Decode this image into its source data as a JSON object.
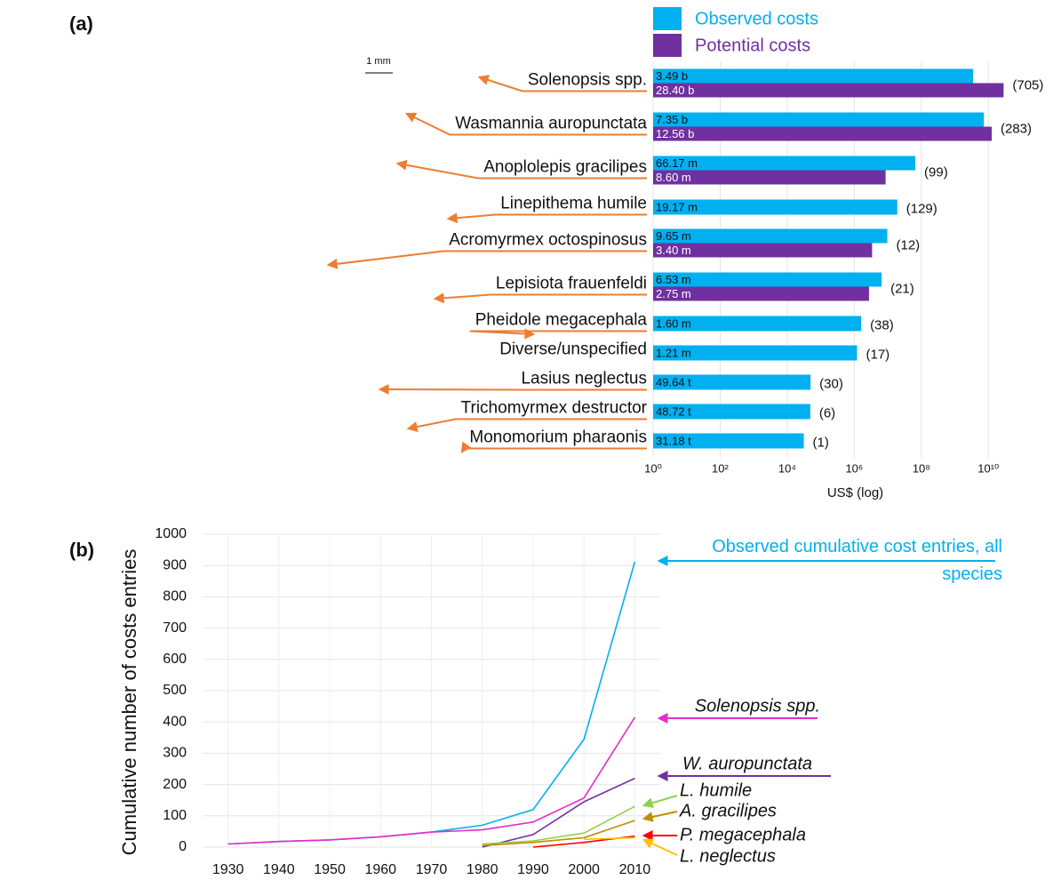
{
  "chart_data": [
    {
      "type": "bar",
      "orientation": "horizontal",
      "panel_label": "(a)",
      "xscale": "log",
      "grid": true,
      "categories": [
        "Solenopsis spp.",
        "Wasmannia auropunctata",
        "Anoplolepis gracilipes",
        "Linepithema humile",
        "Acromyrmex octospinosus",
        "Lepisiota frauenfeldi",
        "Pheidole megacephala",
        "Diverse/unspecified",
        "Lasius neglectus",
        "Trichomyrmex destructor",
        "Monomorium pharaonis"
      ],
      "series": [
        {
          "name": "Observed costs",
          "color": "#00b0f0",
          "values": [
            3490000000,
            7350000000,
            66170000,
            19170000,
            9650000,
            6530000,
            1600000,
            1210000,
            49640,
            48720,
            31180
          ],
          "value_labels": [
            "3.49 b",
            "7.35 b",
            "66.17 m",
            "19.17 m",
            "9.65 m",
            "6.53 m",
            "1.60 m",
            "1.21 m",
            "49.64 t",
            "48.72 t",
            "31.18 t"
          ]
        },
        {
          "name": "Potential costs",
          "color": "#7030a0",
          "values": [
            28400000000,
            12560000000,
            8600000,
            null,
            3400000,
            2750000,
            null,
            null,
            null,
            null,
            null
          ],
          "value_labels": [
            "28.40 b",
            "12.56 b",
            "8.60 m",
            null,
            "3.40 m",
            "2.75 m",
            null,
            null,
            null,
            null,
            null
          ]
        }
      ],
      "entry_labels": [
        "(705)",
        "(283)",
        "(99)",
        "(129)",
        "(12)",
        "(21)",
        "(38)",
        "(17)",
        "(30)",
        "(6)",
        "(1)"
      ],
      "xlim": [
        1,
        100000000000
      ],
      "xticks": [
        {
          "value": 1,
          "label": "10⁰"
        },
        {
          "value": 100,
          "label": "10²"
        },
        {
          "value": 10000,
          "label": "10⁴"
        },
        {
          "value": 1000000,
          "label": "10⁶"
        },
        {
          "value": 100000000,
          "label": "10⁸"
        },
        {
          "value": 10000000000,
          "label": "10¹⁰"
        }
      ],
      "xlabel": "US$ (log)",
      "scale_bar_label": "1 mm",
      "legend": "top"
    },
    {
      "type": "line",
      "panel_label": "(b)",
      "grid": true,
      "x": [
        1930,
        1940,
        1950,
        1960,
        1970,
        1980,
        1990,
        2000,
        2010
      ],
      "series": [
        {
          "name": "Observed cumulative cost entries, all species",
          "color": "#00b0f0",
          "values": [
            10,
            18,
            23,
            33,
            48,
            70,
            120,
            345,
            912
          ]
        },
        {
          "name": "Solenopsis spp.",
          "color": "#e62cc8",
          "values": [
            10,
            18,
            23,
            33,
            48,
            55,
            80,
            157,
            415
          ]
        },
        {
          "name": "W. auropunctata",
          "color": "#7030a0",
          "values": [
            null,
            null,
            null,
            null,
            null,
            0,
            40,
            145,
            220
          ]
        },
        {
          "name": "L. humile",
          "color": "#8fd14f",
          "values": [
            null,
            null,
            null,
            null,
            null,
            10,
            20,
            45,
            130
          ]
        },
        {
          "name": "A. gracilipes",
          "color": "#bf8f00",
          "values": [
            null,
            null,
            null,
            null,
            null,
            5,
            15,
            30,
            85
          ]
        },
        {
          "name": "P. megacephala",
          "color": "#ff0000",
          "values": [
            null,
            null,
            null,
            null,
            null,
            null,
            0,
            15,
            35
          ]
        },
        {
          "name": "L. neglectus",
          "color": "#ffc000",
          "values": [
            null,
            null,
            null,
            null,
            null,
            null,
            null,
            25,
            30
          ]
        }
      ],
      "xlim": [
        1925,
        2015
      ],
      "xticks": [
        1930,
        1940,
        1950,
        1960,
        1970,
        1980,
        1990,
        2000,
        2010
      ],
      "ylim": [
        0,
        1000
      ],
      "yticks": [
        0,
        100,
        200,
        300,
        400,
        500,
        600,
        700,
        800,
        900,
        1000
      ],
      "ylabel": "Cumulative number of costs entries",
      "legend": "right"
    }
  ]
}
